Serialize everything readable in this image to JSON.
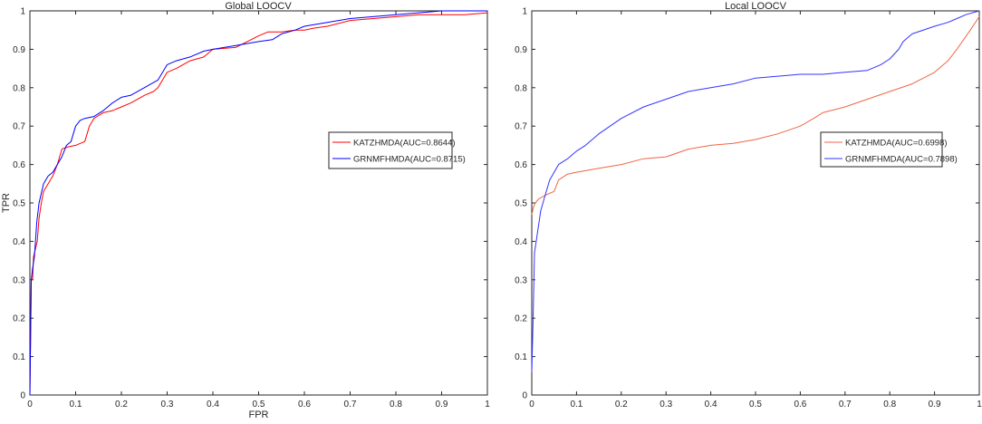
{
  "chart_data": [
    {
      "type": "line",
      "title": "Global LOOCV",
      "xlabel": "FPR",
      "ylabel": "TPR",
      "xlim": [
        0,
        1
      ],
      "ylim": [
        0,
        1
      ],
      "xticks": [
        "0",
        "0.1",
        "0.2",
        "0.3",
        "0.4",
        "0.5",
        "0.6",
        "0.7",
        "0.8",
        "0.9",
        "1"
      ],
      "yticks": [
        "0",
        "0.1",
        "0.2",
        "0.3",
        "0.4",
        "0.5",
        "0.6",
        "0.7",
        "0.8",
        "0.9",
        "1"
      ],
      "grid": false,
      "legend_position": "right",
      "series": [
        {
          "name": "KATZHMDA(AUC=0.8644)",
          "color": "#ff0000",
          "x": [
            0,
            0.003,
            0.006,
            0.008,
            0.012,
            0.016,
            0.02,
            0.025,
            0.03,
            0.04,
            0.05,
            0.06,
            0.07,
            0.08,
            0.1,
            0.12,
            0.13,
            0.14,
            0.16,
            0.18,
            0.2,
            0.22,
            0.25,
            0.27,
            0.28,
            0.3,
            0.32,
            0.35,
            0.38,
            0.4,
            0.45,
            0.5,
            0.52,
            0.55,
            0.58,
            0.6,
            0.62,
            0.65,
            0.7,
            0.75,
            0.8,
            0.85,
            0.9,
            0.95,
            1.0
          ],
          "y": [
            0,
            0.3,
            0.3,
            0.36,
            0.38,
            0.4,
            0.46,
            0.5,
            0.53,
            0.55,
            0.57,
            0.6,
            0.64,
            0.645,
            0.65,
            0.66,
            0.7,
            0.72,
            0.735,
            0.74,
            0.75,
            0.76,
            0.78,
            0.79,
            0.8,
            0.84,
            0.85,
            0.87,
            0.88,
            0.9,
            0.905,
            0.935,
            0.945,
            0.945,
            0.95,
            0.95,
            0.955,
            0.96,
            0.975,
            0.98,
            0.985,
            0.99,
            0.99,
            0.99,
            0.995
          ]
        },
        {
          "name": "GRNMFHMDA(AUC=0.8715)",
          "color": "#0000ff",
          "x": [
            0,
            0.003,
            0.006,
            0.01,
            0.015,
            0.02,
            0.03,
            0.04,
            0.05,
            0.06,
            0.07,
            0.08,
            0.09,
            0.1,
            0.11,
            0.12,
            0.14,
            0.16,
            0.18,
            0.2,
            0.22,
            0.25,
            0.28,
            0.3,
            0.32,
            0.35,
            0.38,
            0.4,
            0.45,
            0.5,
            0.53,
            0.55,
            0.58,
            0.6,
            0.65,
            0.7,
            0.75,
            0.8,
            0.85,
            0.9,
            0.95,
            1.0
          ],
          "y": [
            0,
            0.3,
            0.33,
            0.36,
            0.45,
            0.5,
            0.55,
            0.57,
            0.58,
            0.6,
            0.62,
            0.65,
            0.66,
            0.7,
            0.715,
            0.72,
            0.725,
            0.74,
            0.76,
            0.775,
            0.78,
            0.8,
            0.82,
            0.86,
            0.87,
            0.88,
            0.895,
            0.9,
            0.91,
            0.92,
            0.925,
            0.94,
            0.95,
            0.96,
            0.97,
            0.98,
            0.985,
            0.99,
            0.995,
            1.0,
            1.0,
            1.0
          ]
        }
      ]
    },
    {
      "type": "line",
      "title": "Local LOOCV",
      "xlabel": "",
      "ylabel": "",
      "xlim": [
        0,
        1
      ],
      "ylim": [
        0,
        1
      ],
      "xticks": [
        "0",
        "0.1",
        "0.2",
        "0.3",
        "0.4",
        "0.5",
        "0.6",
        "0.7",
        "0.8",
        "0.9",
        "1"
      ],
      "yticks": [
        "0",
        "0.1",
        "0.2",
        "0.3",
        "0.4",
        "0.5",
        "0.6",
        "0.7",
        "0.8",
        "0.9",
        "1"
      ],
      "grid": false,
      "legend_position": "right",
      "series": [
        {
          "name": "KATZHMDA(AUC=0.6998)",
          "color": "#ee6644",
          "x": [
            0,
            0.004,
            0.008,
            0.015,
            0.03,
            0.05,
            0.06,
            0.08,
            0.1,
            0.15,
            0.2,
            0.25,
            0.3,
            0.35,
            0.4,
            0.45,
            0.5,
            0.55,
            0.6,
            0.63,
            0.65,
            0.7,
            0.75,
            0.8,
            0.85,
            0.9,
            0.93,
            0.95,
            0.98,
            1.0
          ],
          "y": [
            0.47,
            0.49,
            0.5,
            0.51,
            0.52,
            0.53,
            0.56,
            0.575,
            0.58,
            0.59,
            0.6,
            0.615,
            0.62,
            0.64,
            0.65,
            0.655,
            0.665,
            0.68,
            0.7,
            0.72,
            0.735,
            0.75,
            0.77,
            0.79,
            0.81,
            0.84,
            0.87,
            0.9,
            0.95,
            0.985
          ]
        },
        {
          "name": "GRNMFHMDA(AUC=0.7898)",
          "color": "#3333ff",
          "x": [
            0,
            0.003,
            0.006,
            0.01,
            0.015,
            0.02,
            0.03,
            0.04,
            0.05,
            0.06,
            0.08,
            0.1,
            0.12,
            0.15,
            0.2,
            0.25,
            0.3,
            0.35,
            0.4,
            0.45,
            0.5,
            0.55,
            0.6,
            0.65,
            0.7,
            0.75,
            0.78,
            0.8,
            0.82,
            0.83,
            0.85,
            0.9,
            0.93,
            0.95,
            0.97,
            1.0
          ],
          "y": [
            0.06,
            0.2,
            0.37,
            0.4,
            0.44,
            0.48,
            0.52,
            0.56,
            0.58,
            0.6,
            0.615,
            0.635,
            0.65,
            0.68,
            0.72,
            0.75,
            0.77,
            0.79,
            0.8,
            0.81,
            0.825,
            0.83,
            0.835,
            0.835,
            0.84,
            0.845,
            0.86,
            0.875,
            0.9,
            0.92,
            0.94,
            0.96,
            0.97,
            0.98,
            0.99,
            1.0
          ]
        }
      ]
    }
  ]
}
